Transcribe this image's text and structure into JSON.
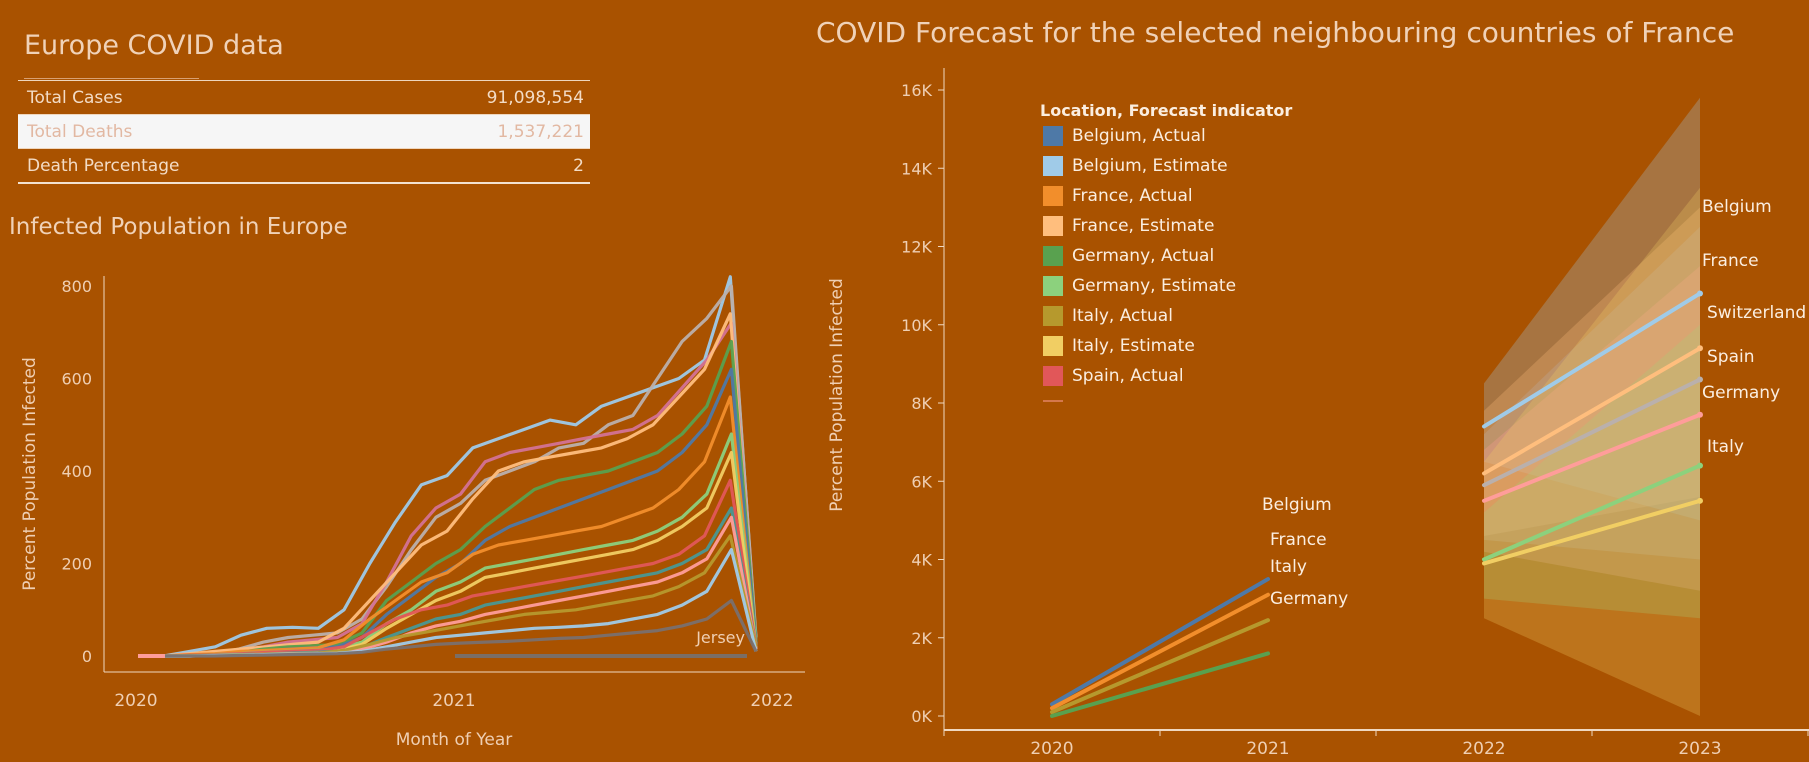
{
  "kpi": {
    "title": "Europe COVID data",
    "rows": [
      {
        "label": "Total Cases",
        "value": "91,098,554"
      },
      {
        "label": "Total Deaths",
        "value": "1,537,221"
      },
      {
        "label": "Death Percentage",
        "value": "2"
      }
    ]
  },
  "colors": {
    "background": "#a95200",
    "text": "#f1d9c2"
  },
  "chart_data": [
    {
      "type": "line",
      "title": "Infected Population in Europe",
      "xlabel": "Month of Year",
      "ylabel": "Percent Population Infected",
      "x_ticks": [
        "2020",
        "2021",
        "2022"
      ],
      "y_ticks": [
        0,
        200,
        400,
        600,
        800
      ],
      "ylim": [
        0,
        850
      ],
      "annotation": "Jersey",
      "note_series_count": "many European countries (approximate)",
      "series": [
        {
          "color": "#9ecae9",
          "values": [
            0,
            0,
            10,
            20,
            45,
            60,
            62,
            60,
            100,
            200,
            290,
            370,
            390,
            450,
            470,
            490,
            510,
            500,
            540,
            560,
            580,
            600,
            640,
            820,
            40
          ]
        },
        {
          "color": "#bab0ac",
          "values": [
            0,
            0,
            5,
            15,
            30,
            40,
            45,
            50,
            80,
            150,
            230,
            300,
            330,
            380,
            400,
            420,
            450,
            460,
            500,
            520,
            600,
            680,
            730,
            800,
            30
          ]
        },
        {
          "color": "#d37295",
          "values": [
            0,
            0,
            8,
            12,
            20,
            30,
            35,
            40,
            70,
            160,
            260,
            320,
            350,
            420,
            440,
            450,
            460,
            470,
            480,
            490,
            520,
            580,
            640,
            720,
            25
          ]
        },
        {
          "color": "#ffbe7d",
          "values": [
            0,
            0,
            5,
            10,
            15,
            20,
            25,
            30,
            60,
            120,
            180,
            240,
            270,
            340,
            400,
            420,
            430,
            440,
            450,
            470,
            500,
            560,
            620,
            740,
            20
          ]
        },
        {
          "color": "#59a14f",
          "values": [
            0,
            0,
            4,
            8,
            15,
            20,
            22,
            25,
            50,
            120,
            160,
            200,
            230,
            280,
            320,
            360,
            380,
            390,
            400,
            420,
            440,
            480,
            540,
            680,
            30
          ]
        },
        {
          "color": "#4e79a7",
          "values": [
            0,
            0,
            3,
            6,
            10,
            15,
            18,
            20,
            40,
            90,
            130,
            170,
            200,
            250,
            280,
            300,
            320,
            340,
            360,
            380,
            400,
            440,
            500,
            620,
            20
          ]
        },
        {
          "color": "#f28e2b",
          "values": [
            0,
            0,
            3,
            5,
            10,
            12,
            15,
            18,
            35,
            80,
            120,
            160,
            180,
            220,
            240,
            250,
            260,
            270,
            280,
            300,
            320,
            360,
            420,
            560,
            15
          ]
        },
        {
          "color": "#8cd17d",
          "values": [
            0,
            0,
            3,
            5,
            8,
            10,
            12,
            15,
            30,
            70,
            100,
            140,
            160,
            190,
            200,
            210,
            220,
            230,
            240,
            250,
            270,
            300,
            350,
            480,
            20
          ]
        },
        {
          "color": "#f1ce63",
          "values": [
            0,
            0,
            2,
            4,
            6,
            8,
            10,
            12,
            25,
            60,
            90,
            120,
            140,
            170,
            180,
            190,
            200,
            210,
            220,
            230,
            250,
            280,
            320,
            440,
            15
          ]
        },
        {
          "color": "#e15759",
          "values": [
            0,
            0,
            2,
            3,
            5,
            8,
            10,
            12,
            20,
            50,
            80,
            100,
            110,
            130,
            140,
            150,
            160,
            170,
            180,
            190,
            200,
            220,
            260,
            380,
            20
          ]
        },
        {
          "color": "#499894",
          "values": [
            0,
            0,
            2,
            3,
            4,
            6,
            8,
            10,
            18,
            40,
            60,
            80,
            90,
            110,
            120,
            130,
            140,
            150,
            160,
            170,
            180,
            200,
            230,
            320,
            15
          ]
        },
        {
          "color": "#ff9d9a",
          "values": [
            0,
            0,
            1,
            2,
            4,
            5,
            6,
            8,
            15,
            30,
            50,
            65,
            75,
            90,
            100,
            110,
            120,
            130,
            140,
            150,
            160,
            180,
            210,
            300,
            15
          ]
        },
        {
          "color": "#b6992d",
          "values": [
            0,
            0,
            1,
            2,
            3,
            4,
            5,
            6,
            12,
            25,
            40,
            50,
            60,
            70,
            80,
            90,
            95,
            100,
            110,
            120,
            130,
            150,
            180,
            260,
            20
          ]
        },
        {
          "color": "#a0cbe8",
          "values": [
            0,
            0,
            1,
            2,
            3,
            4,
            5,
            6,
            10,
            20,
            30,
            40,
            45,
            50,
            55,
            60,
            62,
            65,
            70,
            80,
            90,
            110,
            140,
            230,
            10
          ]
        },
        {
          "color": "#79706e",
          "values": [
            0,
            0,
            0,
            1,
            2,
            3,
            4,
            5,
            8,
            15,
            20,
            25,
            28,
            30,
            32,
            35,
            38,
            40,
            45,
            50,
            55,
            65,
            80,
            120,
            10
          ]
        }
      ]
    },
    {
      "type": "line",
      "title": "COVID Forecast for the selected neighbouring countries of France",
      "xlabel": "",
      "ylabel": "Percent Population Infected",
      "x_ticks": [
        "2020",
        "2021",
        "2022",
        "2023"
      ],
      "y_ticks": [
        "0K",
        "2K",
        "4K",
        "6K",
        "8K",
        "10K",
        "12K",
        "14K",
        "16K"
      ],
      "ylim": [
        0,
        16500
      ],
      "legend_title": "Location, Forecast indicator",
      "legend_position": "top-left",
      "legend": [
        {
          "label": "Belgium, Actual",
          "color": "#4e79a7"
        },
        {
          "label": "Belgium, Estimate",
          "color": "#a0cbe8"
        },
        {
          "label": "France, Actual",
          "color": "#f28e2b"
        },
        {
          "label": "France, Estimate",
          "color": "#ffbe7d"
        },
        {
          "label": "Germany, Actual",
          "color": "#59a14f"
        },
        {
          "label": "Germany, Estimate",
          "color": "#8cd17d"
        },
        {
          "label": "Italy, Actual",
          "color": "#b6992d"
        },
        {
          "label": "Italy, Estimate",
          "color": "#f1ce63"
        },
        {
          "label": "Spain, Actual",
          "color": "#e15759"
        }
      ],
      "actual": [
        {
          "name": "Belgium",
          "color": "#4e79a7",
          "x": [
            "2020",
            "2021"
          ],
          "values": [
            300,
            3500
          ]
        },
        {
          "name": "France",
          "color": "#f28e2b",
          "x": [
            "2020",
            "2021"
          ],
          "values": [
            200,
            3100
          ]
        },
        {
          "name": "Italy",
          "color": "#b6992d",
          "x": [
            "2020",
            "2021"
          ],
          "values": [
            100,
            2450
          ]
        },
        {
          "name": "Germany",
          "color": "#59a14f",
          "x": [
            "2020",
            "2021"
          ],
          "values": [
            0,
            1600
          ]
        }
      ],
      "estimate": [
        {
          "name": "Belgium",
          "color": "#a0cbe8",
          "x": [
            "2022",
            "2023"
          ],
          "values": [
            7400,
            10800
          ],
          "band": [
            [
              8500,
              6500
            ],
            [
              15800,
              5000
            ]
          ]
        },
        {
          "name": "France",
          "color": "#ffbe7d",
          "x": [
            "2022",
            "2023"
          ],
          "values": [
            6200,
            9400
          ],
          "band": [
            [
              7800,
              4600
            ],
            [
              13000,
              5600
            ]
          ]
        },
        {
          "name": "Switzerland",
          "color": "#bab0ac",
          "x": [
            "2022",
            "2023"
          ],
          "values": [
            5900,
            8600
          ],
          "band": [
            [
              7200,
              4500
            ],
            [
              12500,
              4000
            ]
          ]
        },
        {
          "name": "Spain",
          "color": "#ff9d9a",
          "x": [
            "2022",
            "2023"
          ],
          "values": [
            5500,
            7700
          ],
          "band": [
            [
              6800,
              4200
            ],
            [
              11500,
              3200
            ]
          ]
        },
        {
          "name": "Germany",
          "color": "#8cd17d",
          "x": [
            "2022",
            "2023"
          ],
          "values": [
            4000,
            6400
          ],
          "band": [
            [
              5200,
              3000
            ],
            [
              10000,
              2500
            ]
          ]
        },
        {
          "name": "Italy",
          "color": "#f1ce63",
          "x": [
            "2022",
            "2023"
          ],
          "values": [
            3900,
            5500
          ],
          "band": [
            [
              6500,
              2500
            ],
            [
              13500,
              0
            ]
          ]
        }
      ]
    }
  ]
}
